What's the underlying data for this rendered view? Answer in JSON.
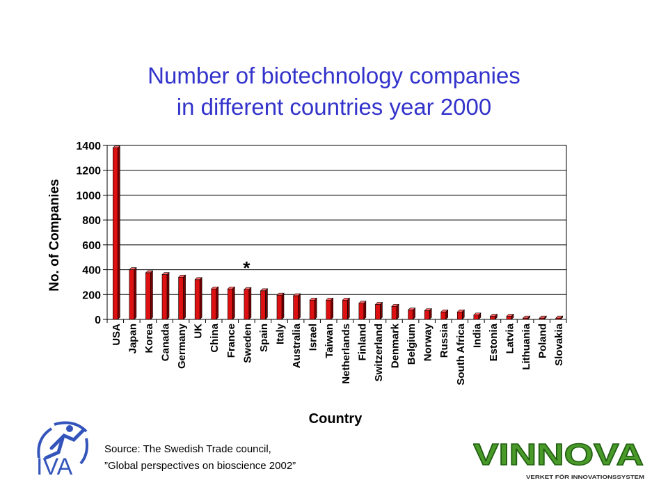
{
  "slide": {
    "title_line1": "Number of biotechnology companies",
    "title_line2": "in different countries year 2000"
  },
  "chart_data": {
    "type": "bar",
    "title": "Number of biotechnology companies in different countries year 2000",
    "xlabel": "Country",
    "ylabel": "No. of Companies",
    "ylim": [
      0,
      1400
    ],
    "yticks": [
      0,
      200,
      400,
      600,
      800,
      1000,
      1200,
      1400
    ],
    "grid": true,
    "categories": [
      "USA",
      "Japan",
      "Korea",
      "Canada",
      "Germany",
      "UK",
      "China",
      "France",
      "Sweden",
      "Spain",
      "Italy",
      "Australia",
      "Israel",
      "Taiwan",
      "Netherlands",
      "Finland",
      "Switzerland",
      "Denmark",
      "Belgium",
      "Norway",
      "Russia",
      "South Africa",
      "India",
      "Estonia",
      "Latvia",
      "Lithuania",
      "Poland",
      "Slovakia"
    ],
    "values": [
      1380,
      400,
      375,
      360,
      340,
      320,
      245,
      245,
      240,
      230,
      195,
      190,
      155,
      155,
      155,
      130,
      120,
      105,
      75,
      70,
      60,
      60,
      35,
      25,
      25,
      10,
      10,
      10
    ],
    "annotation": {
      "text": "*",
      "category": "Sweden"
    },
    "bar_color": "#dd1111"
  },
  "footer": {
    "source_line1": "Source: The Swedish Trade council,",
    "source_line2": "”Global perspectives on bioscience 2002”",
    "logo_left": "IVA",
    "logo_right": "VINNOVA",
    "logo_right_tagline": "VERKET FÖR INNOVATIONSSYSTEM"
  }
}
